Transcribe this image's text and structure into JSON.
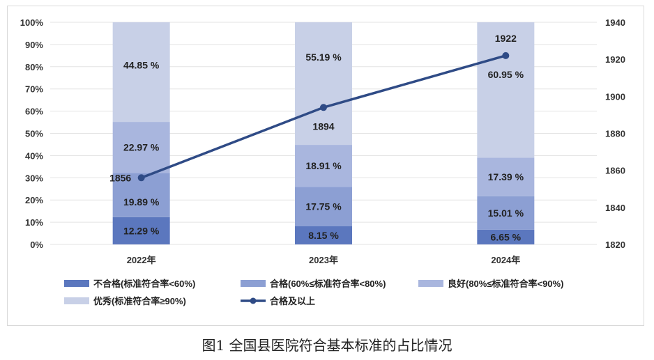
{
  "caption": "图1  全国县医院符合基本标准的占比情况",
  "chart_data": {
    "type": "bar",
    "stacked": true,
    "categories": [
      "2022年",
      "2023年",
      "2024年"
    ],
    "series": [
      {
        "name": "不合格(标准符合率<60%)",
        "values": [
          12.29,
          8.15,
          6.65
        ],
        "labels": [
          "12.29 %",
          "8.15 %",
          "6.65 %"
        ],
        "color": "#5b77be"
      },
      {
        "name": "合格(60%≤标准符合率<80%)",
        "values": [
          19.89,
          17.75,
          15.01
        ],
        "labels": [
          "19.89 %",
          "17.75 %",
          "15.01 %"
        ],
        "color": "#8c9fd3"
      },
      {
        "name": "良好(80%≤标准符合率<90%)",
        "values": [
          22.97,
          18.91,
          17.39
        ],
        "labels": [
          "22.97 %",
          "18.91 %",
          "17.39 %"
        ],
        "color": "#a9b6de"
      },
      {
        "name": "优秀(标准符合率≥90%)",
        "values": [
          44.85,
          55.19,
          60.95
        ],
        "labels": [
          "44.85 %",
          "55.19 %",
          "60.95 %"
        ],
        "color": "#c8d0e7"
      }
    ],
    "line": {
      "name": "合格及以上",
      "values": [
        1856,
        1894,
        1922
      ],
      "labels": [
        "1856",
        "1894",
        "1922"
      ],
      "color": "#2f4b86"
    },
    "y_left": {
      "range": [
        0,
        100
      ],
      "ticks": [
        "0%",
        "10%",
        "20%",
        "30%",
        "40%",
        "50%",
        "60%",
        "70%",
        "80%",
        "90%",
        "100%"
      ]
    },
    "y_right": {
      "range": [
        1820,
        1940
      ],
      "ticks": [
        "1820",
        "1840",
        "1860",
        "1880",
        "1900",
        "1920",
        "1940"
      ]
    },
    "grid": true,
    "legend": "bottom"
  }
}
